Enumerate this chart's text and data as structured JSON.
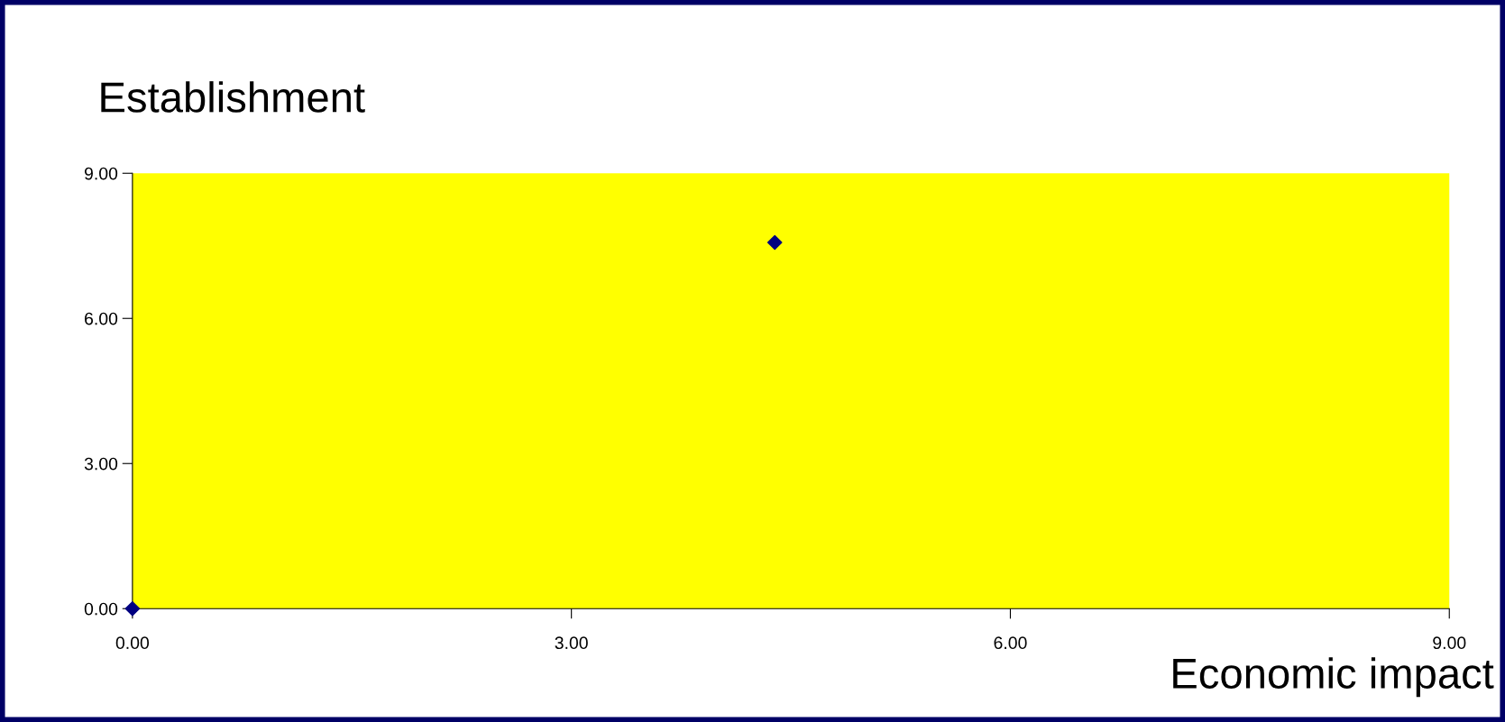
{
  "chart_data": {
    "type": "scatter",
    "xlabel": "Economic impact",
    "ylabel": "Establishment",
    "x": [
      0,
      4.39
    ],
    "series": [
      {
        "color": "#000080",
        "values": [
          0,
          7.57
        ]
      }
    ],
    "marker": "diamond",
    "xlim": [
      0,
      9
    ],
    "ylim": [
      0,
      9
    ],
    "xticks": [
      {
        "value": 0,
        "label": "0.00"
      },
      {
        "value": 3,
        "label": "3.00"
      },
      {
        "value": 6,
        "label": "6.00"
      },
      {
        "value": 9,
        "label": "9.00"
      }
    ],
    "yticks": [
      {
        "value": 0,
        "label": "0.00"
      },
      {
        "value": 3,
        "label": "3.00"
      },
      {
        "value": 6,
        "label": "6.00"
      },
      {
        "value": 9,
        "label": "9.00"
      }
    ],
    "grid": false,
    "legend": false
  }
}
